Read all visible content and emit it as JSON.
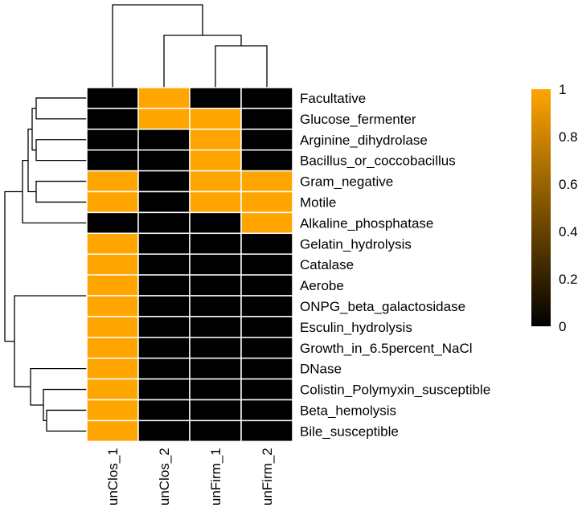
{
  "chart_data": {
    "type": "heatmap",
    "title": "",
    "rows": [
      "Facultative",
      "Glucose_fermenter",
      "Arginine_dihydrolase",
      "Bacillus_or_coccobacillus",
      "Gram_negative",
      "Motile",
      "Alkaline_phosphatase",
      "Gelatin_hydrolysis",
      "Catalase",
      "Aerobe",
      "ONPG_beta_galactosidase",
      "Esculin_hydrolysis",
      "Growth_in_6.5percent_NaCl",
      "DNase",
      "Colistin_Polymyxin_susceptible",
      "Beta_hemolysis",
      "Bile_susceptible"
    ],
    "columns": [
      "unClos_1",
      "unClos_2",
      "unFirm_1",
      "unFirm_2"
    ],
    "values": [
      [
        0,
        1,
        0,
        0
      ],
      [
        0,
        1,
        1,
        0
      ],
      [
        0,
        0,
        1,
        0
      ],
      [
        0,
        0,
        1,
        0
      ],
      [
        1,
        0,
        1,
        1
      ],
      [
        1,
        0,
        1,
        1
      ],
      [
        0,
        0,
        0,
        1
      ],
      [
        1,
        0,
        0,
        0
      ],
      [
        1,
        0,
        0,
        0
      ],
      [
        1,
        0,
        0,
        0
      ],
      [
        1,
        0,
        0,
        0
      ],
      [
        1,
        0,
        0,
        0
      ],
      [
        1,
        0,
        0,
        0
      ],
      [
        1,
        0,
        0,
        0
      ],
      [
        1,
        0,
        0,
        0
      ],
      [
        1,
        0,
        0,
        0
      ],
      [
        1,
        0,
        0,
        0
      ]
    ],
    "color_scale": {
      "min": 0,
      "max": 1,
      "low_color": "#000000",
      "high_color": "#FFA500",
      "ticks": [
        0,
        0.2,
        0.4,
        0.6,
        0.8,
        1
      ],
      "tick_labels": [
        "0",
        "0.2",
        "0.4",
        "0.6",
        "0.8",
        "1"
      ]
    },
    "column_dendrogram": true,
    "row_dendrogram": true,
    "legend_position": "right"
  }
}
